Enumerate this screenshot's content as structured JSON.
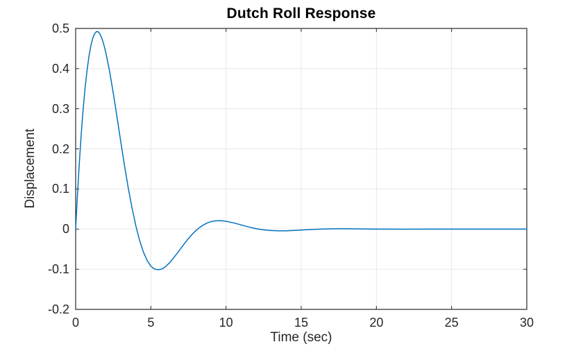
{
  "chart_data": {
    "type": "line",
    "title": "Dutch Roll Response",
    "xlabel": "Time (sec)",
    "ylabel": "Displacement",
    "xlim": [
      0,
      30
    ],
    "ylim": [
      -0.2,
      0.5
    ],
    "x_ticks": [
      0,
      5,
      10,
      15,
      20,
      25,
      30
    ],
    "y_ticks": [
      -0.2,
      -0.1,
      0,
      0.1,
      0.2,
      0.3,
      0.4,
      0.5
    ],
    "grid": true,
    "box": true,
    "legend": false,
    "colors": {
      "line": "#0072BD",
      "grid": "#e7e7e7",
      "axis": "#262626",
      "tick_label": "#262626",
      "title": "#000000",
      "background": "#ffffff"
    },
    "series": [
      {
        "name": "dutch-roll-displacement",
        "points": [
          [
            0,
            0
          ],
          [
            0.125,
            0.0884
          ],
          [
            0.25,
            0.1677
          ],
          [
            0.375,
            0.2378
          ],
          [
            0.5,
            0.2986
          ],
          [
            0.625,
            0.3506
          ],
          [
            0.75,
            0.3938
          ],
          [
            0.875,
            0.4285
          ],
          [
            1,
            0.4551
          ],
          [
            1.125,
            0.4745
          ],
          [
            1.25,
            0.4866
          ],
          [
            1.375,
            0.4921
          ],
          [
            1.5,
            0.4917
          ],
          [
            1.625,
            0.4856
          ],
          [
            1.75,
            0.4748
          ],
          [
            1.875,
            0.4597
          ],
          [
            2,
            0.4409
          ],
          [
            2.25,
            0.3942
          ],
          [
            2.5,
            0.3388
          ],
          [
            2.75,
            0.2791
          ],
          [
            3,
            0.2179
          ],
          [
            3.25,
            0.1581
          ],
          [
            3.5,
            0.1024
          ],
          [
            3.75,
            0.0521
          ],
          [
            4,
            0.0084
          ],
          [
            4.25,
            -0.0279
          ],
          [
            4.5,
            -0.0567
          ],
          [
            4.75,
            -0.0778
          ],
          [
            5,
            -0.0923
          ],
          [
            5.25,
            -0.0996
          ],
          [
            5.5,
            -0.1013
          ],
          [
            5.75,
            -0.0992
          ],
          [
            6,
            -0.0929
          ],
          [
            6.25,
            -0.0837
          ],
          [
            6.5,
            -0.0723
          ],
          [
            6.75,
            -0.0604
          ],
          [
            7,
            -0.0477
          ],
          [
            7.25,
            -0.0353
          ],
          [
            7.5,
            -0.0236
          ],
          [
            7.75,
            -0.0129
          ],
          [
            8,
            -0.0035
          ],
          [
            8.25,
            0.0043
          ],
          [
            8.5,
            0.0105
          ],
          [
            8.75,
            0.0153
          ],
          [
            9,
            0.0185
          ],
          [
            9.25,
            0.0204
          ],
          [
            9.5,
            0.021
          ],
          [
            9.75,
            0.0206
          ],
          [
            10,
            0.0195
          ],
          [
            10.5,
            0.0155
          ],
          [
            11,
            0.0105
          ],
          [
            11.5,
            0.0054
          ],
          [
            12,
            0.0011
          ],
          [
            12.5,
            -0.0019
          ],
          [
            13,
            -0.0037
          ],
          [
            13.5,
            -0.0043
          ],
          [
            14,
            -0.0041
          ],
          [
            14.5,
            -0.0033
          ],
          [
            15,
            -0.0023
          ],
          [
            15.5,
            -0.0012
          ],
          [
            16,
            -0.0003
          ],
          [
            16.5,
            0.0003
          ],
          [
            17,
            0.0007
          ],
          [
            17.5,
            0.0009
          ],
          [
            18,
            0.0009
          ],
          [
            19,
            0.0005
          ],
          [
            20,
            0.0001
          ],
          [
            22,
            -0.0002
          ],
          [
            24,
            0
          ],
          [
            26,
            0
          ],
          [
            28,
            0
          ],
          [
            30,
            0
          ]
        ]
      }
    ]
  }
}
